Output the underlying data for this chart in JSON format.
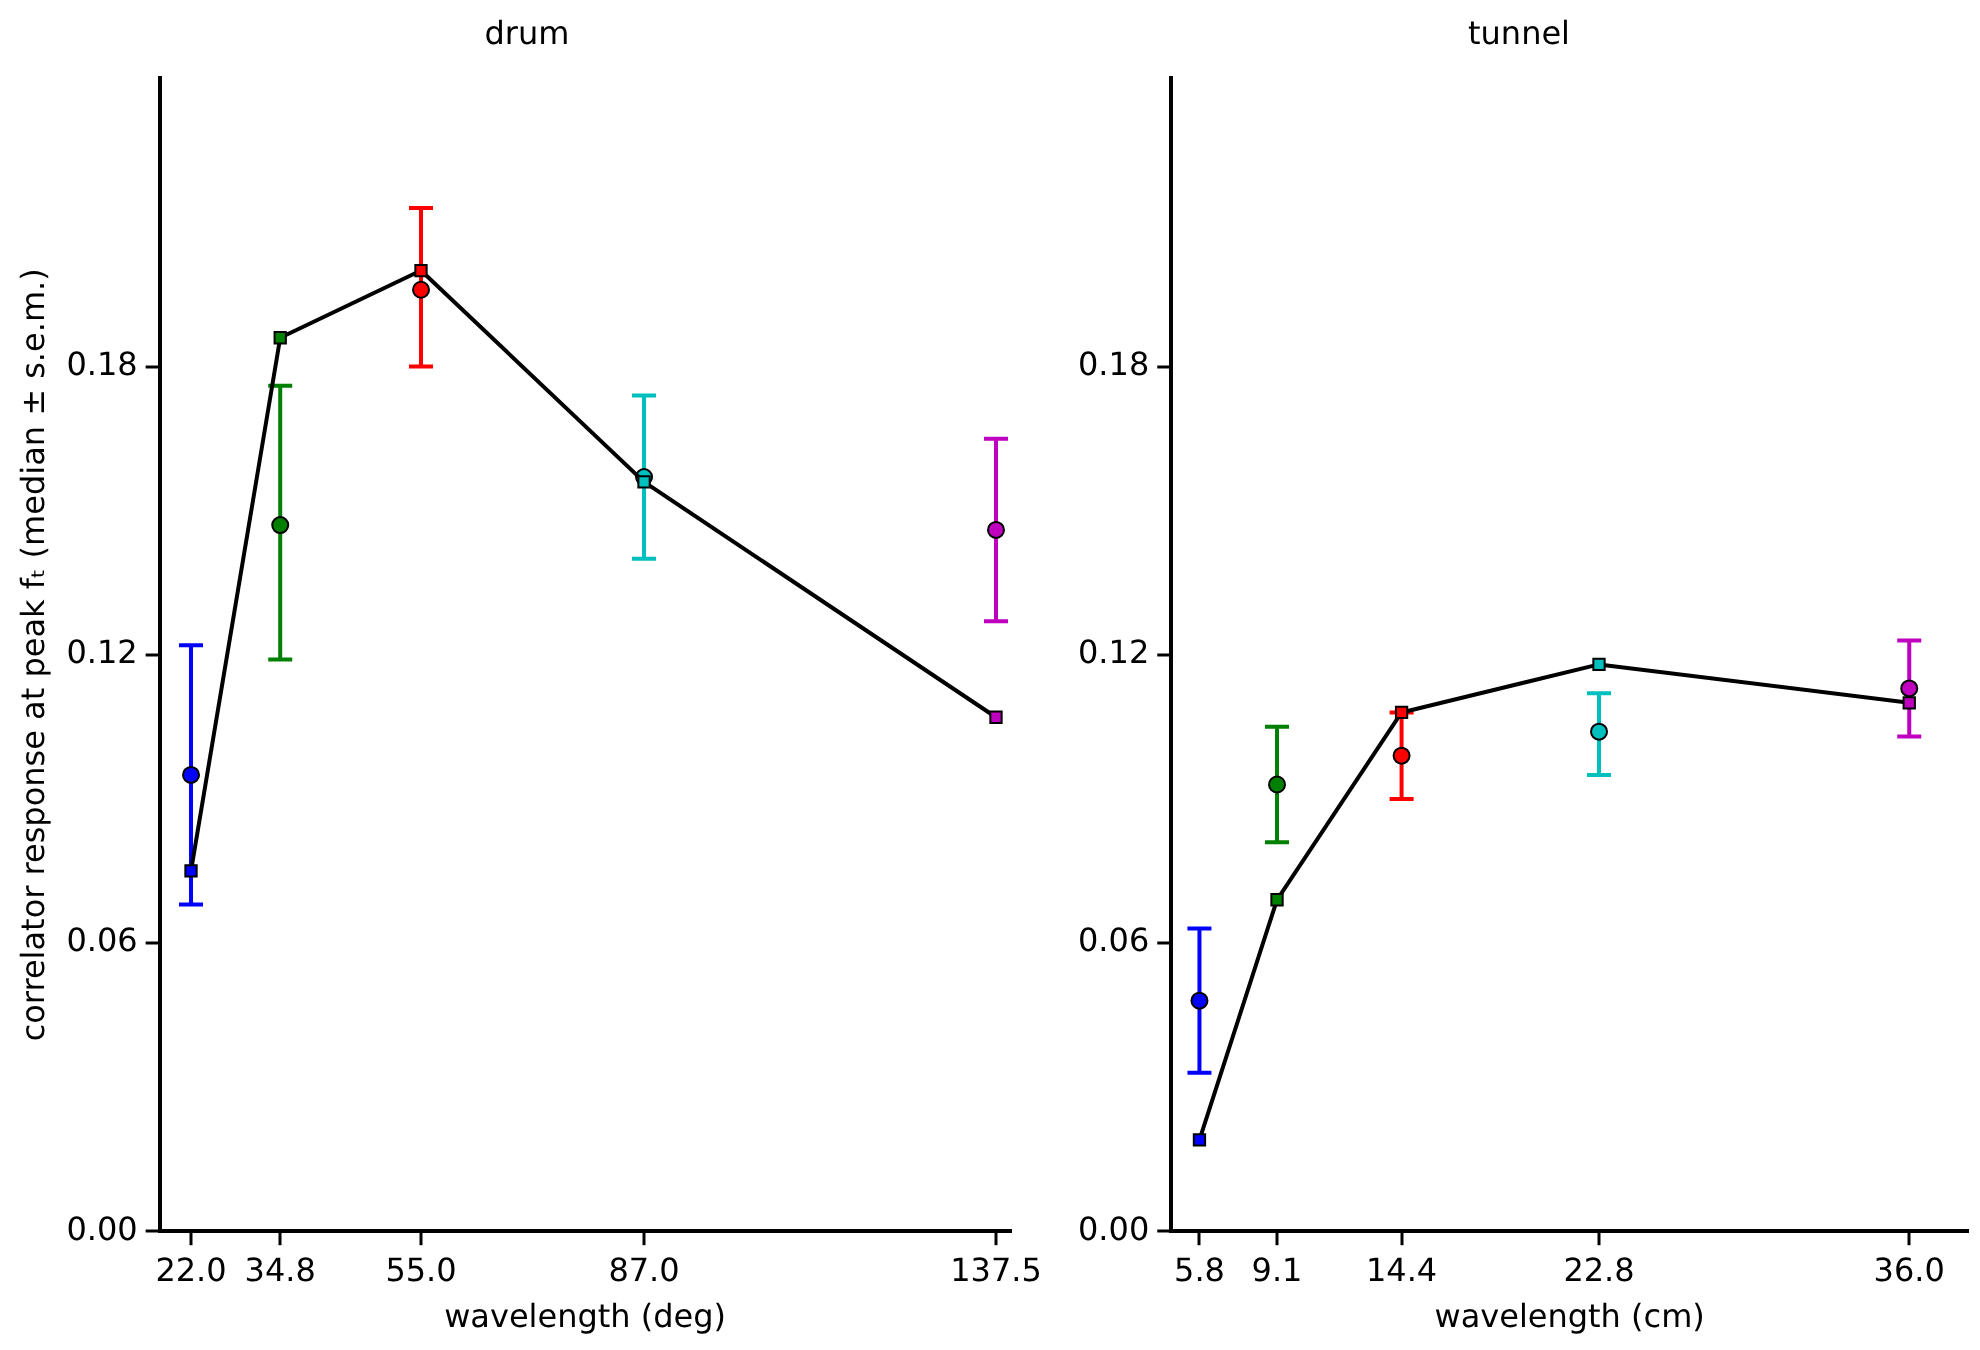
{
  "chart_data": [
    {
      "type": "scatter",
      "title": "drum",
      "xlabel": "wavelength (deg)",
      "ylabel": "correlator response at peak fₜ (median ± s.e.m.)",
      "x": [
        22.0,
        34.8,
        55.0,
        87.0,
        137.5
      ],
      "series": [
        {
          "type": "scatter",
          "marker": "circle",
          "colors": [
            "#0000ff",
            "#008000",
            "#ff0000",
            "#00bfbf",
            "#bf00bf"
          ],
          "values": [
            0.095,
            0.147,
            0.196,
            0.157,
            0.146
          ],
          "errors": [
            [
              0.068,
              0.122
            ],
            [
              0.119,
              0.176
            ],
            [
              0.18,
              0.213
            ],
            [
              0.14,
              0.174
            ],
            [
              0.127,
              0.165
            ]
          ]
        },
        {
          "type": "line",
          "marker": "square",
          "color": "#000000",
          "colors": [
            "#0000ff",
            "#008000",
            "#ff0000",
            "#00bfbf",
            "#bf00bf"
          ],
          "values": [
            0.075,
            0.186,
            0.2,
            0.156,
            0.107
          ]
        }
      ],
      "xlim": [
        17.5,
        139.6
      ],
      "xticks": [
        {
          "value": 22.0,
          "label": "22.0"
        },
        {
          "value": 34.8,
          "label": "34.8"
        },
        {
          "value": 55.0,
          "label": "55.0"
        },
        {
          "value": 87.0,
          "label": "87.0"
        },
        {
          "value": 137.5,
          "label": "137.5"
        }
      ],
      "ylim": [
        0,
        0.24
      ],
      "yticks": [
        {
          "value": 0,
          "label": "0.00"
        },
        {
          "value": 0.06,
          "label": "0.06"
        },
        {
          "value": 0.12,
          "label": "0.12"
        },
        {
          "value": 0.18,
          "label": "0.18"
        }
      ],
      "grid": false,
      "legend": false
    },
    {
      "type": "scatter",
      "title": "tunnel",
      "xlabel": "wavelength (cm)",
      "x": [
        5.8,
        9.1,
        14.4,
        22.8,
        36.0
      ],
      "series": [
        {
          "type": "scatter",
          "marker": "circle",
          "colors": [
            "#0000ff",
            "#008000",
            "#ff0000",
            "#00bfbf",
            "#bf00bf"
          ],
          "values": [
            0.048,
            0.093,
            0.099,
            0.104,
            0.113
          ],
          "errors": [
            [
              0.033,
              0.063
            ],
            [
              0.081,
              0.105
            ],
            [
              0.09,
              0.108
            ],
            [
              0.095,
              0.112
            ],
            [
              0.103,
              0.123
            ]
          ]
        },
        {
          "type": "line",
          "marker": "square",
          "color": "#000000",
          "colors": [
            "#0000ff",
            "#008000",
            "#ff0000",
            "#00bfbf",
            "#bf00bf"
          ],
          "values": [
            0.019,
            0.069,
            0.108,
            0.118,
            0.11
          ]
        }
      ],
      "xlim": [
        4.6,
        38.5
      ],
      "xticks": [
        {
          "value": 5.8,
          "label": "5.8"
        },
        {
          "value": 9.1,
          "label": "9.1"
        },
        {
          "value": 14.4,
          "label": "14.4"
        },
        {
          "value": 22.8,
          "label": "22.8"
        },
        {
          "value": 36.0,
          "label": "36.0"
        }
      ],
      "ylim": [
        0,
        0.24
      ],
      "yticks": [
        {
          "value": 0,
          "label": "0.00"
        },
        {
          "value": 0.06,
          "label": "0.06"
        },
        {
          "value": 0.12,
          "label": "0.12"
        },
        {
          "value": 0.18,
          "label": "0.18"
        }
      ],
      "grid": false,
      "legend": false
    }
  ]
}
